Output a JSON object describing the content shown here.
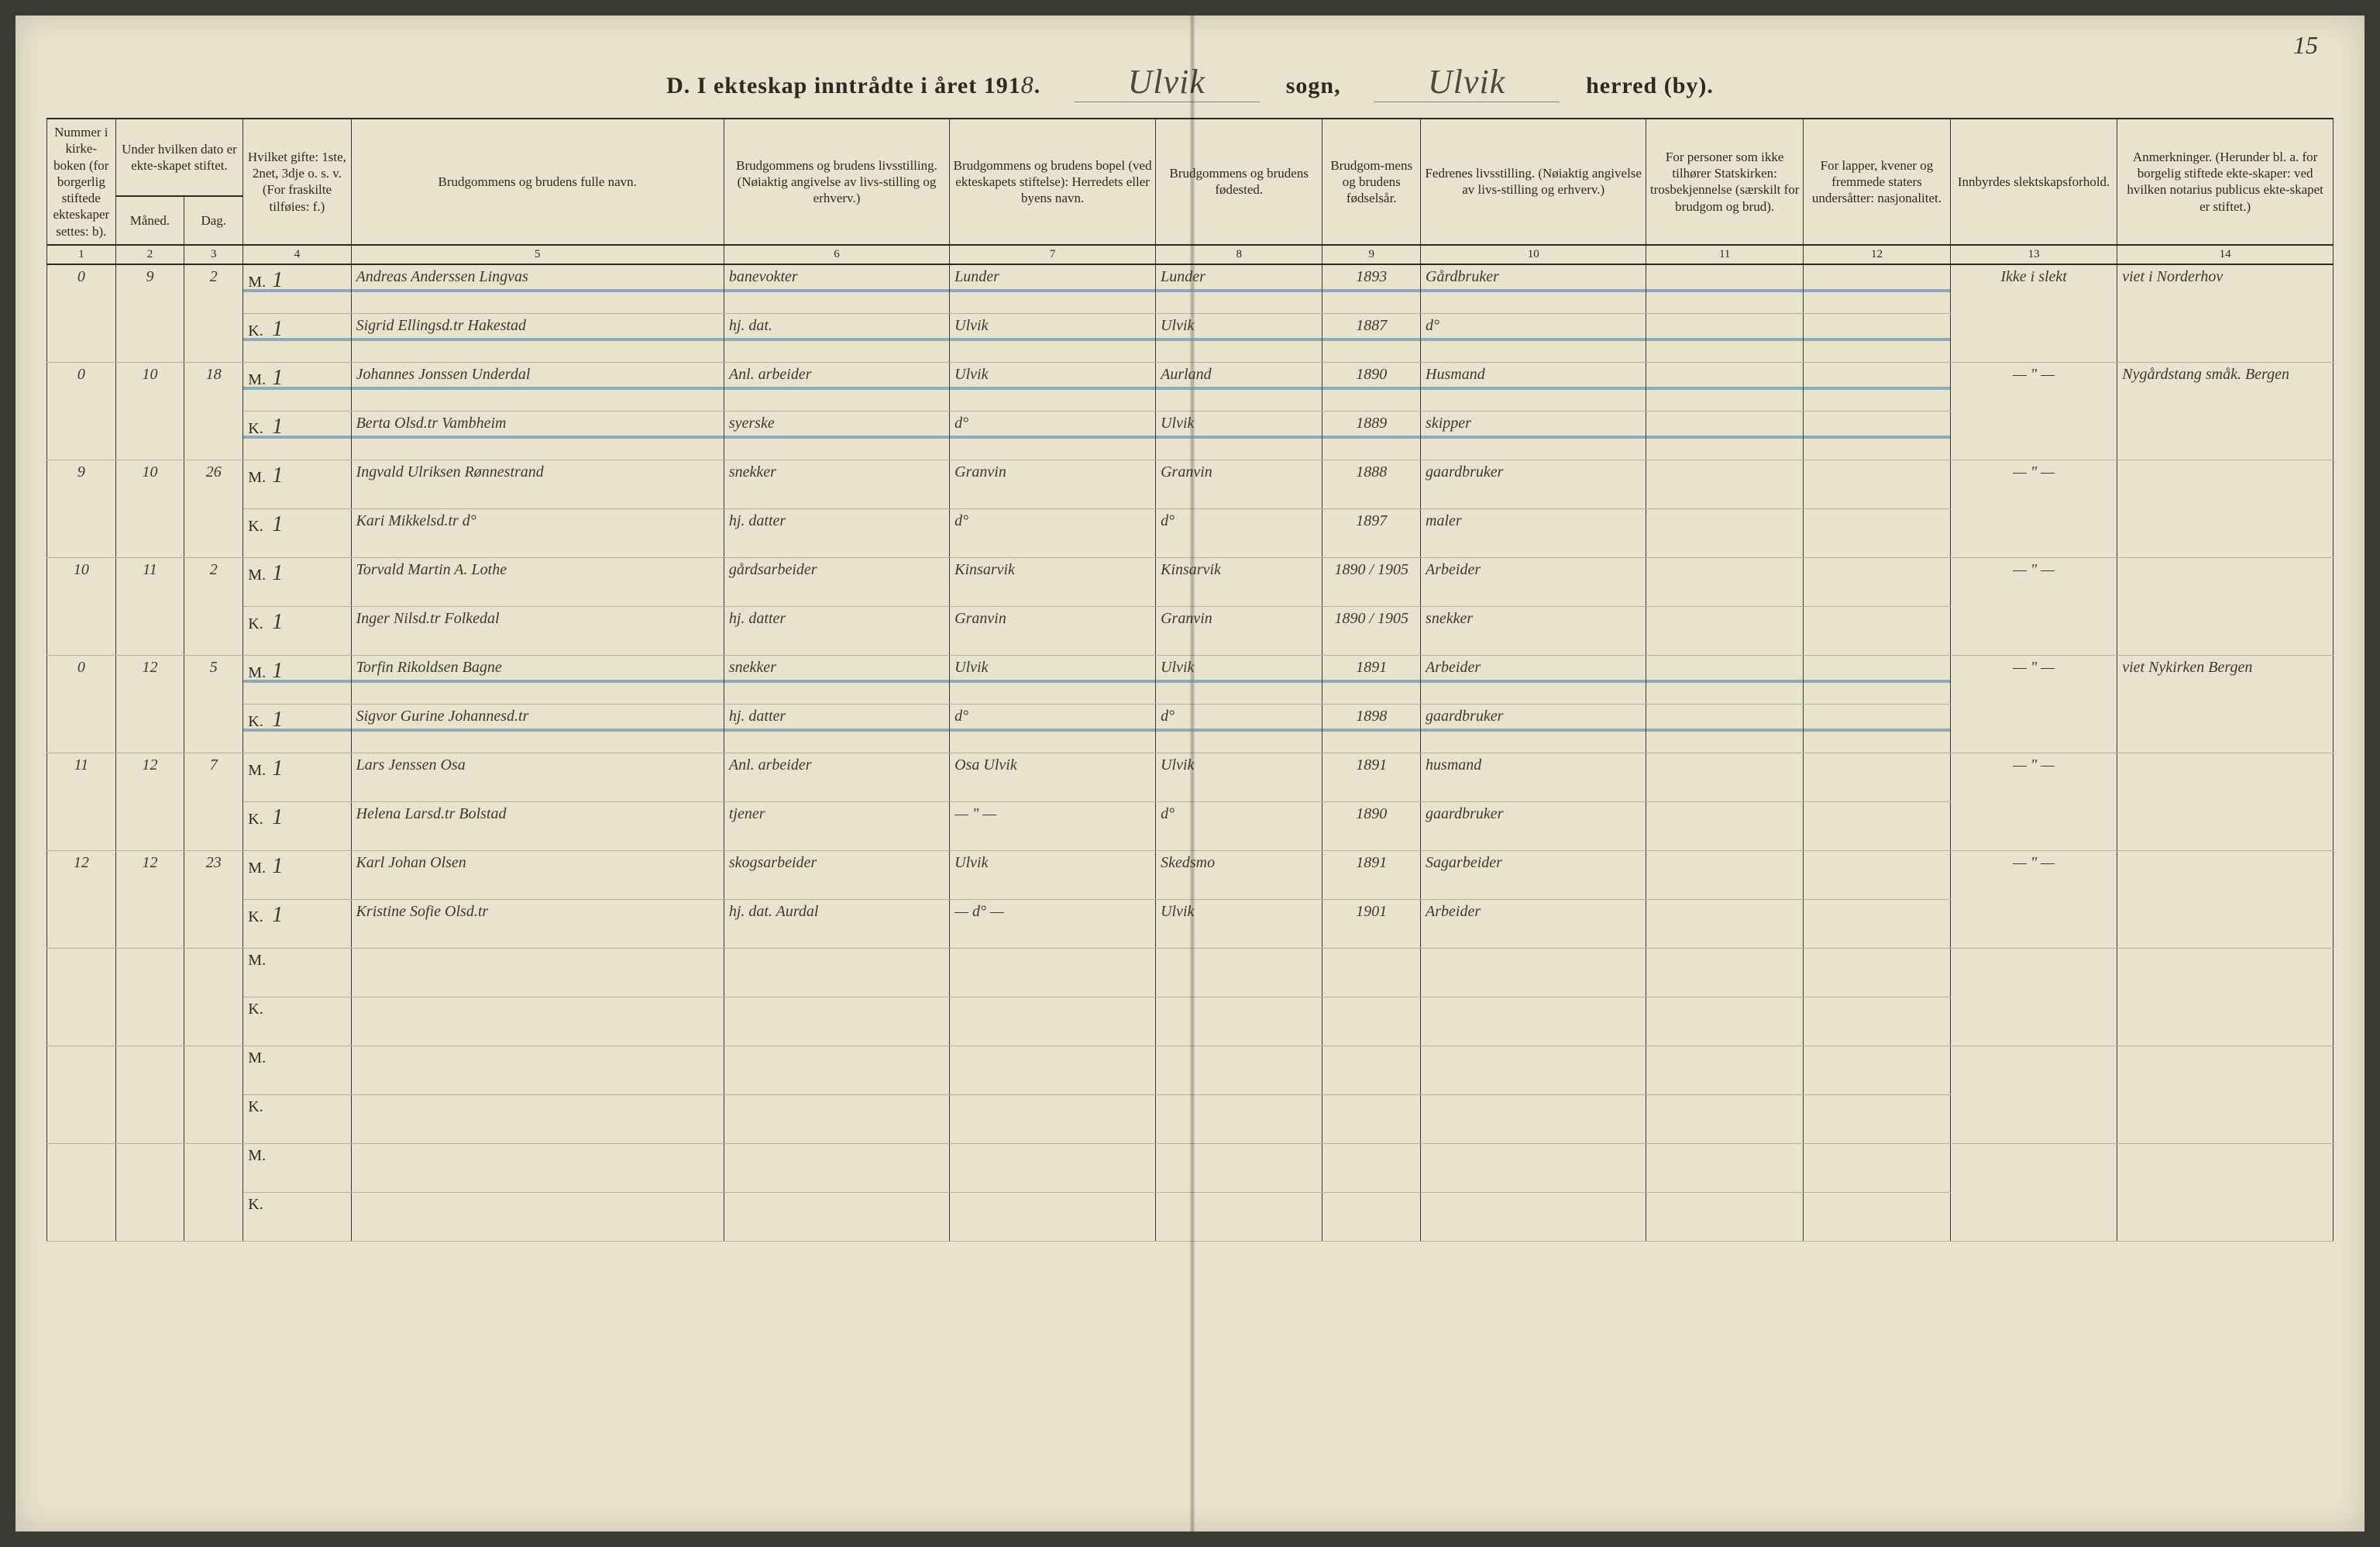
{
  "page_number": "15",
  "title": {
    "prefix_bold": "D.",
    "prefix": "I ekteskap inntrådte i året 191",
    "year_suffix": "8",
    "period": ".",
    "sogn_value": "Ulvik",
    "sogn_label": "sogn,",
    "herred_value": "Ulvik",
    "herred_label": "herred (by)."
  },
  "headers": {
    "h1": "Nummer i kirke-boken (for borgerlig stiftede ekteskaper settes: b).",
    "h2_top": "Under hvilken dato er ekte-skapet stiftet.",
    "h2a": "Måned.",
    "h2b": "Dag.",
    "h4": "Hvilket gifte: 1ste, 2net, 3dje o. s. v. (For fraskilte tilføies: f.)",
    "h5": "Brudgommens og brudens fulle navn.",
    "h6": "Brudgommens og brudens livsstilling. (Nøiaktig angivelse av livs-stilling og erhverv.)",
    "h7": "Brudgommens og brudens bopel (ved ekteskapets stiftelse): Herredets eller byens navn.",
    "h8": "Brudgommens og brudens fødested.",
    "h9": "Brudgom-mens og brudens fødselsår.",
    "h10": "Fedrenes livsstilling. (Nøiaktig angivelse av livs-stilling og erhverv.)",
    "h11": "For personer som ikke tilhører Statskirken: trosbekjennelse (særskilt for brudgom og brud).",
    "h12": "For lapper, kvener og fremmede staters undersåtter: nasjonalitet.",
    "h13": "Innbyrdes slektskapsforhold.",
    "h14": "Anmerkninger. (Herunder bl. a. for borgelig stiftede ekte-skaper: ved hvilken notarius publicus ekte-skapet er stiftet.)"
  },
  "colnums": [
    "1",
    "2",
    "3",
    "4",
    "5",
    "6",
    "7",
    "8",
    "9",
    "10",
    "11",
    "12",
    "13",
    "14"
  ],
  "mk": {
    "m": "M.",
    "k": "K."
  },
  "entries": [
    {
      "num": "0",
      "maned": "9",
      "dag": "2",
      "struck": true,
      "m": {
        "gifte": "1",
        "navn": "Andreas Anderssen Lingvas",
        "stilling": "banevokter",
        "bopel": "Lunder",
        "fodested": "Lunder",
        "aar": "1893",
        "far": "Gårdbruker"
      },
      "k": {
        "gifte": "1",
        "navn": "Sigrid Ellingsd.tr Hakestad",
        "stilling": "hj. dat.",
        "bopel": "Ulvik",
        "fodested": "Ulvik",
        "aar": "1887",
        "far": "d°"
      },
      "col13": "Ikke i slekt",
      "col14": "viet i Norderhov"
    },
    {
      "num": "0",
      "maned": "10",
      "dag": "18",
      "struck": true,
      "m": {
        "gifte": "1",
        "navn": "Johannes Jonssen Underdal",
        "stilling": "Anl. arbeider",
        "bopel": "Ulvik",
        "fodested": "Aurland",
        "aar": "1890",
        "far": "Husmand"
      },
      "k": {
        "gifte": "1",
        "navn": "Berta Olsd.tr Vambheim",
        "stilling": "syerske",
        "bopel": "d°",
        "fodested": "Ulvik",
        "aar": "1889",
        "far": "skipper"
      },
      "col13": "— \" —",
      "col14": "Nygårdstang småk. Bergen"
    },
    {
      "num": "9",
      "maned": "10",
      "dag": "26",
      "struck": false,
      "m": {
        "gifte": "1",
        "navn": "Ingvald Ulriksen Rønnestrand",
        "stilling": "snekker",
        "bopel": "Granvin",
        "fodested": "Granvin",
        "aar": "1888",
        "far": "gaardbruker"
      },
      "k": {
        "gifte": "1",
        "navn": "Kari Mikkelsd.tr d°",
        "stilling": "hj. datter",
        "bopel": "d°",
        "fodested": "d°",
        "aar": "1897",
        "far": "maler"
      },
      "col13": "— \" —",
      "col14": ""
    },
    {
      "num": "10",
      "maned": "11",
      "dag": "2",
      "struck": false,
      "m": {
        "gifte": "1",
        "navn": "Torvald Martin A. Lothe",
        "stilling": "gårdsarbeider",
        "bopel": "Kinsarvik",
        "fodested": "Kinsarvik",
        "aar": "1890 / 1905",
        "far": "Arbeider"
      },
      "k": {
        "gifte": "1",
        "navn": "Inger Nilsd.tr Folkedal",
        "stilling": "hj. datter",
        "bopel": "Granvin",
        "fodested": "Granvin",
        "aar": "1890 / 1905",
        "far": "snekker"
      },
      "col13": "— \" —",
      "col14": ""
    },
    {
      "num": "0",
      "maned": "12",
      "dag": "5",
      "struck": true,
      "m": {
        "gifte": "1",
        "navn": "Torfin Rikoldsen Bagne",
        "stilling": "snekker",
        "bopel": "Ulvik",
        "fodested": "Ulvik",
        "aar": "1891",
        "far": "Arbeider"
      },
      "k": {
        "gifte": "1",
        "navn": "Sigvor Gurine Johannesd.tr",
        "stilling": "hj. datter",
        "bopel": "d°",
        "fodested": "d°",
        "aar": "1898",
        "far": "gaardbruker"
      },
      "col13": "— \" —",
      "col14": "viet Nykirken Bergen"
    },
    {
      "num": "11",
      "maned": "12",
      "dag": "7",
      "struck": false,
      "m": {
        "gifte": "1",
        "navn": "Lars Jenssen Osa",
        "stilling": "Anl. arbeider",
        "bopel": "Osa Ulvik",
        "fodested": "Ulvik",
        "aar": "1891",
        "far": "husmand"
      },
      "k": {
        "gifte": "1",
        "navn": "Helena Larsd.tr Bolstad",
        "stilling": "tjener",
        "bopel": "— \" —",
        "fodested": "d°",
        "aar": "1890",
        "far": "gaardbruker"
      },
      "col13": "— \" —",
      "col14": ""
    },
    {
      "num": "12",
      "maned": "12",
      "dag": "23",
      "struck": false,
      "m": {
        "gifte": "1",
        "navn": "Karl Johan Olsen",
        "stilling": "skogsarbeider",
        "bopel": "Ulvik",
        "fodested": "Skedsmo",
        "aar": "1891",
        "far": "Sagarbeider"
      },
      "k": {
        "gifte": "1",
        "navn": "Kristine Sofie Olsd.tr",
        "stilling": "hj. dat. Aurdal",
        "bopel": "— d° —",
        "fodested": "Ulvik",
        "aar": "1901",
        "far": "Arbeider"
      },
      "col13": "— \" —",
      "col14": ""
    }
  ],
  "empty_pairs": 3,
  "colors": {
    "paper": "#e8e3cc",
    "ink": "#2a2a20",
    "hand": "#3a3a2a",
    "rule": "#b8b29a",
    "strike": "rgba(90,140,180,0.65)"
  }
}
